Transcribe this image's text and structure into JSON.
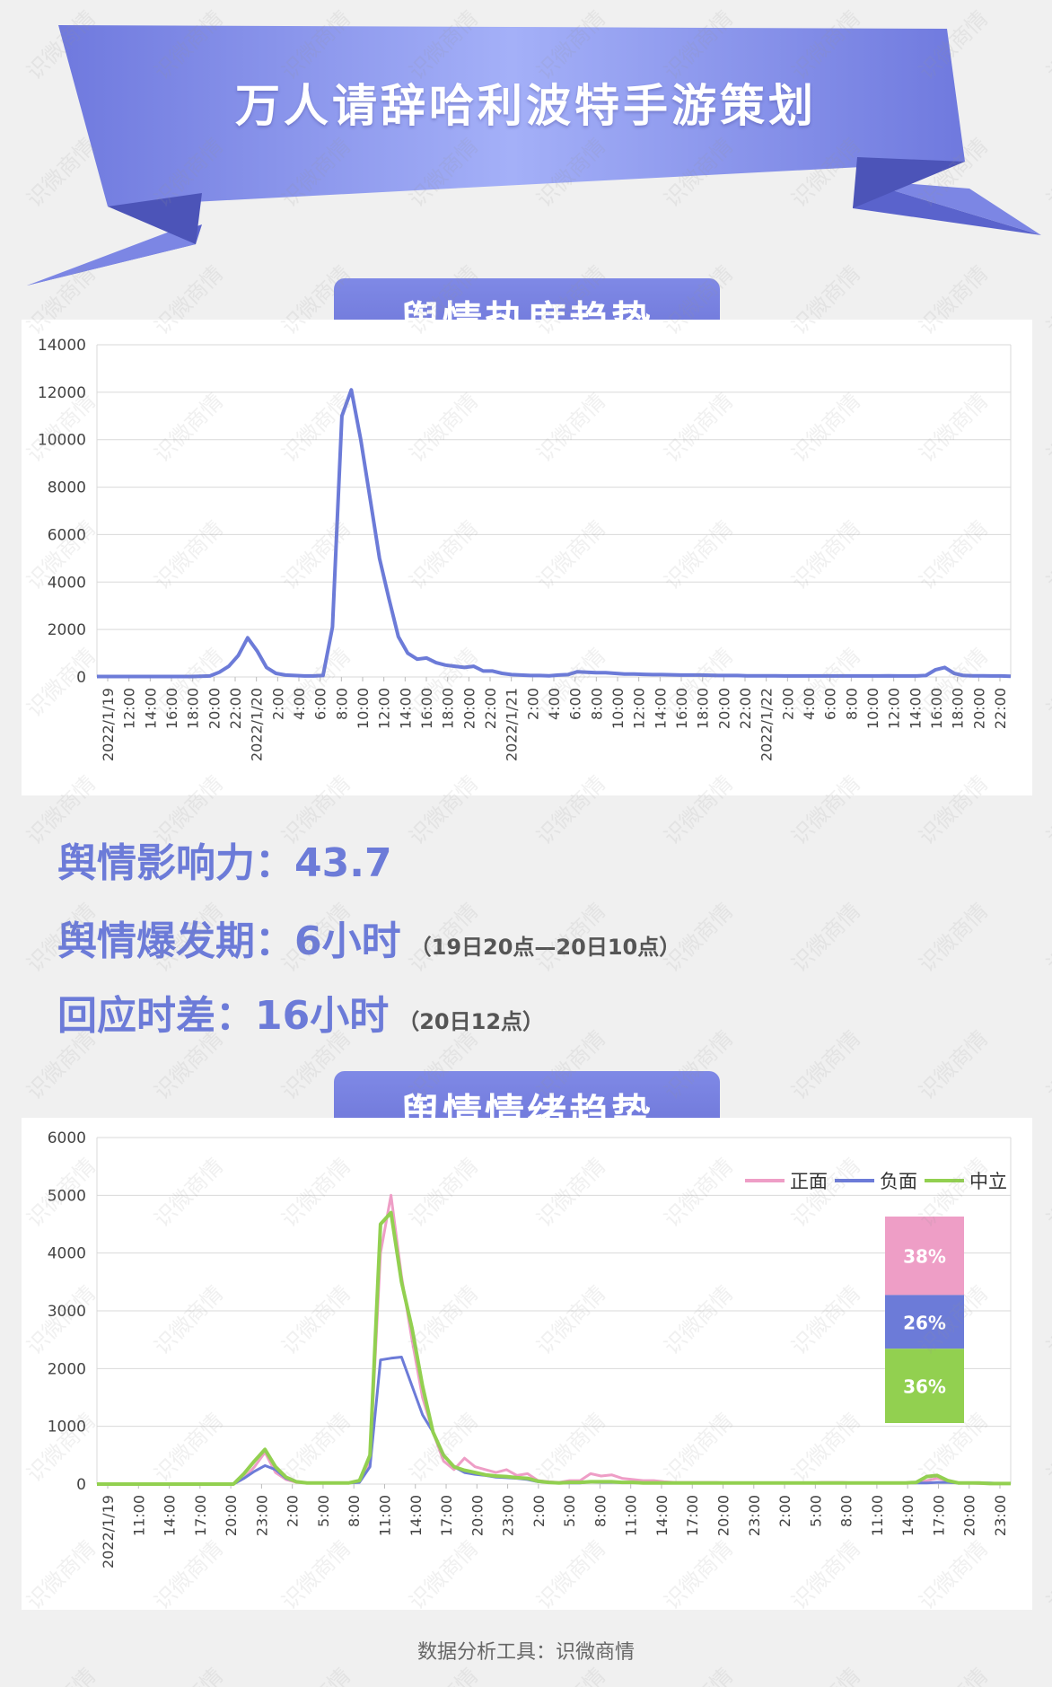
{
  "title": "万人请辞哈利波特手游策划",
  "sections": {
    "heat_label": "舆情热度趋势",
    "emotion_label": "舆情情绪趋势"
  },
  "stats": {
    "influence": "舆情影响力：43.7",
    "burst": "舆情爆发期：6小时",
    "burst_note": "（19日20点—20日10点）",
    "response": "回应时差：16小时",
    "response_note": "（20日12点）"
  },
  "footer": "数据分析工具：识微商情",
  "watermark": "识微商情",
  "colors": {
    "accent": "#6c7bd8",
    "heat_line": "#6c7bd8",
    "positive": "#ee9ec6",
    "negative": "#6c7bd8",
    "neutral": "#92d050"
  },
  "chart_data": [
    {
      "type": "line",
      "ylim": [
        0,
        14000
      ],
      "yticks": [
        0,
        2000,
        4000,
        6000,
        8000,
        10000,
        12000,
        14000
      ],
      "x_tick_labels": [
        "2022/1/19",
        "12:00",
        "14:00",
        "16:00",
        "18:00",
        "20:00",
        "22:00",
        "2022/1/20",
        "2:00",
        "4:00",
        "6:00",
        "8:00",
        "10:00",
        "12:00",
        "14:00",
        "16:00",
        "18:00",
        "20:00",
        "22:00",
        "2022/1/21",
        "2:00",
        "4:00",
        "6:00",
        "8:00",
        "10:00",
        "12:00",
        "14:00",
        "16:00",
        "18:00",
        "20:00",
        "22:00",
        "2022/1/22",
        "2:00",
        "4:00",
        "6:00",
        "8:00",
        "10:00",
        "12:00",
        "14:00",
        "16:00",
        "18:00",
        "20:00",
        "22:00"
      ],
      "series": [
        {
          "values": [
            20,
            20,
            20,
            20,
            20,
            20,
            20,
            20,
            20,
            20,
            20,
            30,
            40,
            200,
            450,
            900,
            1650,
            1100,
            400,
            150,
            80,
            60,
            40,
            40,
            60,
            2100,
            11000,
            12100,
            10000,
            7500,
            5000,
            3300,
            1700,
            1000,
            750,
            800,
            600,
            500,
            450,
            400,
            450,
            250,
            250,
            150,
            100,
            80,
            60,
            60,
            50,
            80,
            100,
            220,
            200,
            180,
            180,
            150,
            120,
            120,
            110,
            100,
            100,
            90,
            80,
            80,
            80,
            70,
            60,
            60,
            60,
            50,
            50,
            50,
            50,
            40,
            40,
            40,
            40,
            40,
            40,
            40,
            40,
            40,
            40,
            40,
            50,
            40,
            40,
            40,
            60,
            300,
            400,
            150,
            60,
            50,
            50,
            40,
            40,
            30
          ]
        }
      ]
    },
    {
      "type": "line",
      "ylim": [
        0,
        6000
      ],
      "yticks": [
        0,
        1000,
        2000,
        3000,
        4000,
        5000,
        6000
      ],
      "x_tick_labels": [
        "2022/1/19",
        "11:00",
        "14:00",
        "17:00",
        "20:00",
        "23:00",
        "2:00",
        "5:00",
        "8:00",
        "11:00",
        "14:00",
        "17:00",
        "20:00",
        "23:00",
        "2:00",
        "5:00",
        "8:00",
        "11:00",
        "14:00",
        "17:00",
        "20:00",
        "23:00",
        "2:00",
        "5:00",
        "8:00",
        "11:00",
        "14:00",
        "17:00",
        "20:00",
        "23:00"
      ],
      "legend": [
        "正面",
        "负面",
        "中立"
      ],
      "legend_position": "top-right",
      "series": [
        {
          "name": "正面",
          "values": [
            0,
            0,
            0,
            0,
            0,
            0,
            0,
            0,
            0,
            0,
            0,
            0,
            0,
            0,
            100,
            300,
            550,
            200,
            80,
            30,
            20,
            20,
            20,
            20,
            20,
            50,
            400,
            4000,
            5000,
            3600,
            2500,
            1500,
            900,
            400,
            250,
            450,
            300,
            250,
            200,
            250,
            150,
            180,
            60,
            40,
            30,
            60,
            60,
            180,
            140,
            160,
            100,
            80,
            60,
            60,
            40,
            30,
            30,
            30,
            30,
            30,
            20,
            20,
            20,
            20,
            20,
            20,
            20,
            20,
            20,
            30,
            30,
            30,
            20,
            20,
            20,
            20,
            20,
            20,
            20,
            60,
            100,
            60,
            20,
            20,
            10,
            10,
            10,
            10
          ]
        },
        {
          "name": "负面",
          "values": [
            0,
            0,
            0,
            0,
            0,
            0,
            0,
            0,
            0,
            0,
            0,
            0,
            0,
            0,
            100,
            220,
            320,
            250,
            100,
            40,
            20,
            20,
            20,
            20,
            20,
            30,
            300,
            2150,
            2180,
            2200,
            1700,
            1200,
            900,
            500,
            300,
            200,
            170,
            150,
            120,
            110,
            100,
            80,
            40,
            30,
            20,
            20,
            20,
            40,
            30,
            30,
            30,
            30,
            20,
            20,
            20,
            20,
            20,
            20,
            20,
            20,
            20,
            20,
            20,
            20,
            20,
            20,
            20,
            20,
            20,
            20,
            20,
            20,
            20,
            20,
            20,
            20,
            20,
            20,
            20,
            20,
            30,
            30,
            20,
            20,
            20,
            20,
            10,
            10
          ]
        },
        {
          "name": "中立",
          "values": [
            0,
            0,
            0,
            0,
            0,
            0,
            0,
            0,
            0,
            0,
            0,
            0,
            0,
            0,
            180,
            400,
            600,
            300,
            120,
            40,
            20,
            20,
            20,
            20,
            20,
            60,
            500,
            4500,
            4700,
            3500,
            2700,
            1700,
            900,
            500,
            300,
            240,
            200,
            160,
            140,
            130,
            110,
            100,
            50,
            30,
            20,
            30,
            30,
            40,
            40,
            40,
            30,
            30,
            20,
            20,
            20,
            20,
            20,
            20,
            20,
            20,
            20,
            20,
            20,
            20,
            20,
            20,
            20,
            20,
            20,
            20,
            20,
            20,
            20,
            20,
            20,
            20,
            20,
            20,
            30,
            130,
            150,
            60,
            20,
            20,
            20,
            10,
            10,
            10
          ]
        }
      ],
      "share_bar": [
        {
          "label": "正面",
          "percent": 38,
          "text": "38%"
        },
        {
          "label": "负面",
          "percent": 26,
          "text": "26%"
        },
        {
          "label": "中立",
          "percent": 36,
          "text": "36%"
        }
      ]
    }
  ]
}
